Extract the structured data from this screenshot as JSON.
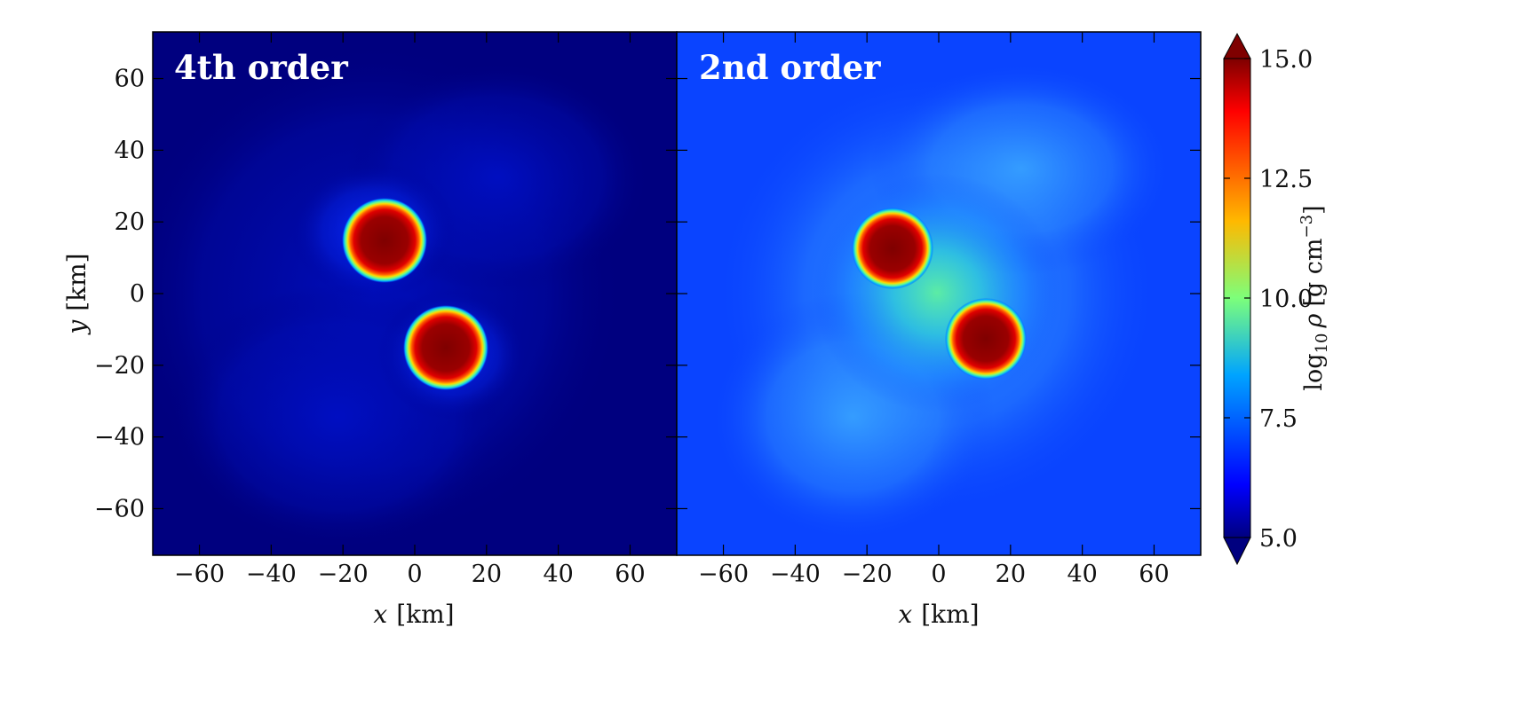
{
  "chart_data": [
    {
      "type": "heatmap",
      "title": "4th order",
      "xlabel": "x [km]",
      "ylabel": "y [km]",
      "xlim": [
        -73,
        73
      ],
      "ylim": [
        -73,
        73
      ],
      "xticks": [
        -60,
        -40,
        -20,
        0,
        20,
        40,
        60
      ],
      "yticks": [
        -60,
        -40,
        -20,
        0,
        20,
        40,
        60
      ],
      "xtick_labels": [
        "−60",
        "−40",
        "−20",
        "0",
        "20",
        "40",
        "60"
      ],
      "ytick_labels": [
        "60",
        "40",
        "20",
        "0",
        "−20",
        "−40",
        "−60"
      ],
      "background_log10_rho": 5.0,
      "halo_log10_rho": 6.2,
      "stars": [
        {
          "x": -8,
          "y": 16,
          "radius_km": 10,
          "core_log10_rho": 15.0
        },
        {
          "x": 9,
          "y": -15,
          "radius_km": 10,
          "core_log10_rho": 15.0
        }
      ]
    },
    {
      "type": "heatmap",
      "title": "2nd order",
      "xlabel": "x [km]",
      "ylabel": "",
      "xlim": [
        -73,
        73
      ],
      "ylim": [
        -73,
        73
      ],
      "xticks": [
        -60,
        -40,
        -20,
        0,
        20,
        40,
        60
      ],
      "xtick_labels": [
        "−60",
        "−40",
        "−20",
        "0",
        "20",
        "40",
        "60"
      ],
      "background_log10_rho": 6.4,
      "halo_log10_rho": 8.5,
      "stars": [
        {
          "x": -13,
          "y": 13,
          "radius_km": 9.5,
          "core_log10_rho": 15.0
        },
        {
          "x": 13,
          "y": -13,
          "radius_km": 9.5,
          "core_log10_rho": 15.0
        }
      ]
    }
  ],
  "colorbar": {
    "label": "log10 ρ [g cm⁻³]",
    "label_prefix": "log",
    "label_sub": "10",
    "label_rho": "ρ",
    "label_unit_open": "[g cm",
    "label_unit_exp": "−3",
    "label_unit_close": "]",
    "range": [
      5.0,
      15.0
    ],
    "ticks": [
      5.0,
      7.5,
      10.0,
      12.5,
      15.0
    ],
    "tick_labels": [
      "5.0",
      "7.5",
      "10.0",
      "12.5",
      "15.0"
    ],
    "colormap": "jet",
    "extend": "both"
  },
  "labels": {
    "ylabel_var": "y",
    "xlabel_var": "x",
    "unit_km": "[km]"
  }
}
